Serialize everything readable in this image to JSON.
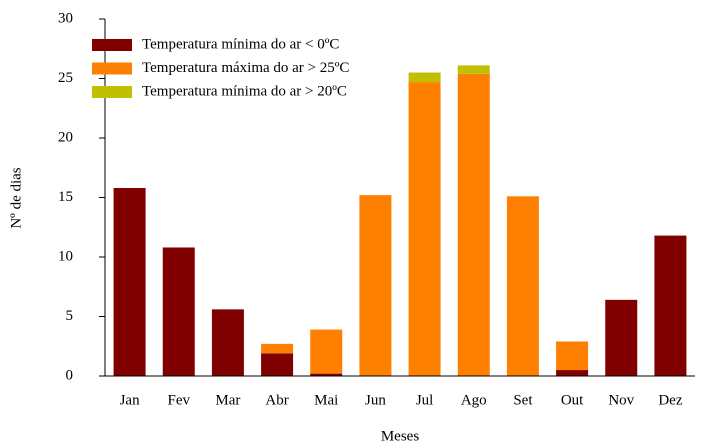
{
  "chart_data": {
    "type": "stacked_bar",
    "x_label": "Meses",
    "y_label": "Nº de dias",
    "categories": [
      "Jan",
      "Fev",
      "Mar",
      "Abr",
      "Mai",
      "Jun",
      "Jul",
      "Ago",
      "Set",
      "Out",
      "Nov",
      "Dez"
    ],
    "series": [
      {
        "name": "Temperatura mínima do ar < 0ºC",
        "color": "#800000",
        "values": [
          15.8,
          10.8,
          5.6,
          1.9,
          0.2,
          0,
          0,
          0,
          0,
          0.5,
          6.4,
          11.8
        ]
      },
      {
        "name": "Temperatura máxima do ar > 25ºC",
        "color": "#ff8000",
        "values": [
          0,
          0,
          0,
          0.8,
          3.7,
          15.2,
          24.7,
          25.4,
          15.1,
          2.4,
          0,
          0
        ]
      },
      {
        "name": "Temperatura mínima do ar > 20ºC",
        "color": "#c0c000",
        "values": [
          0,
          0,
          0,
          0,
          0,
          0,
          0.8,
          0.7,
          0,
          0,
          0,
          0
        ]
      }
    ],
    "ylim": [
      0,
      30
    ],
    "yticks": [
      0,
      5,
      10,
      15,
      20,
      25,
      30
    ],
    "grid": false,
    "legend": "top-left"
  }
}
